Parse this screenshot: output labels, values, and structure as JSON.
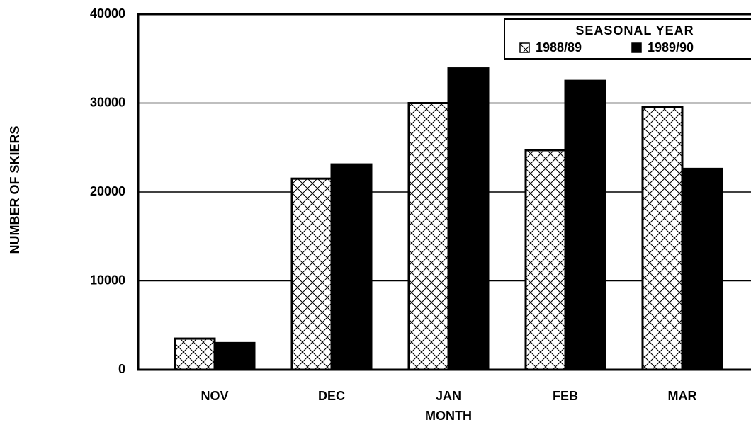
{
  "chart_data": {
    "type": "bar",
    "y_label": "NUMBER OF SKIERS",
    "x_label": "MONTH",
    "legend_title": "SEASONAL YEAR",
    "legend_position": "upper right",
    "categories": [
      "NOV",
      "DEC",
      "JAN",
      "FEB",
      "MAR"
    ],
    "series": [
      {
        "name": "1988/89",
        "color": "#000000",
        "fill": "crosshatch",
        "values": [
          3500,
          21500,
          30000,
          24700,
          29600
        ]
      },
      {
        "name": "1989/90",
        "color": "#000000",
        "fill": "solid",
        "values": [
          3000,
          23100,
          33900,
          32500,
          22600
        ]
      }
    ],
    "ylim": [
      0,
      40000
    ],
    "yticks": [
      0,
      10000,
      20000,
      30000,
      40000
    ],
    "grid": true
  }
}
